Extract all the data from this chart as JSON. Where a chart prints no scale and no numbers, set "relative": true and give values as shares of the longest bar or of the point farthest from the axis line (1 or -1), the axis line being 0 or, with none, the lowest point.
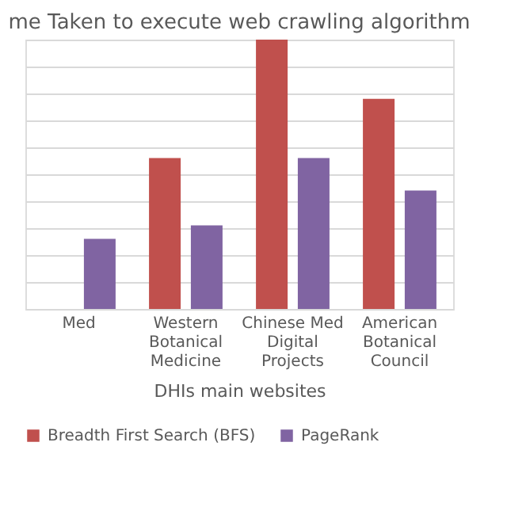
{
  "chart_data": {
    "type": "bar",
    "title": "me Taken to execute web crawling algorithm",
    "xlabel": "DHIs main websites",
    "categories": [
      "Med",
      "Western Botanical Medicine",
      "Chinese Med Digital Projects",
      "American Botanical Council"
    ],
    "relative": true,
    "grid": "y",
    "legend": "bottom",
    "series": [
      {
        "name": "Breadth First Search (BFS)",
        "color": "#c0504d",
        "values": [
          null,
          0.56,
          1,
          0.78
        ]
      },
      {
        "name": "PageRank",
        "color": "#8064a2",
        "values": [
          0.26,
          0.31,
          0.56,
          0.44
        ]
      }
    ]
  }
}
